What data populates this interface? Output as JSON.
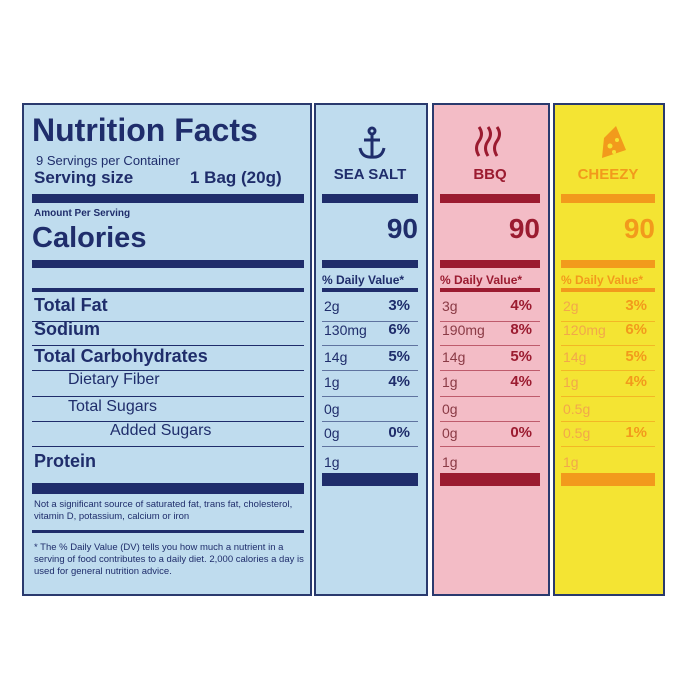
{
  "header": {
    "title": "Nutrition Facts",
    "servings": "9 Servings per Container",
    "serving_size_label": "Serving size",
    "serving_size": "1 Bag (20g)",
    "amount_per_serving": "Amount Per Serving",
    "calories_label": "Calories"
  },
  "nutrients": [
    "Total Fat",
    "Sodium",
    "Total Carbohydrates",
    "Dietary Fiber",
    "Total Sugars",
    "Added Sugars",
    "Protein"
  ],
  "flavors": [
    {
      "name": "SEA SALT",
      "color": "#1f2d6b",
      "amount_color": "#1f2d6b",
      "background": "#bfdcee",
      "calories": 90,
      "dv_header": "% Daily Value*",
      "amounts": [
        "2g",
        "130mg",
        "14g",
        "1g",
        "0g",
        "0g",
        "1g"
      ],
      "dvs": [
        "3%",
        "6%",
        "5%",
        "4%",
        null,
        "0%",
        null
      ]
    },
    {
      "name": "BBQ",
      "color": "#9b1b30",
      "amount_color": "#8a3a45",
      "background": "#f3bcc6",
      "calories": 90,
      "dv_header": "% Daily Value*",
      "amounts": [
        "3g",
        "190mg",
        "14g",
        "1g",
        "0g",
        "0g",
        "1g"
      ],
      "dvs": [
        "4%",
        "8%",
        "5%",
        "4%",
        null,
        "0%",
        null
      ]
    },
    {
      "name": "CHEEZY",
      "color": "#f29a1c",
      "amount_color": "#f2a84a",
      "background": "#f4e433",
      "calories": 90,
      "dv_header": "% Daily Value*",
      "amounts": [
        "2g",
        "120mg",
        "14g",
        "1g",
        "0.5g",
        "0.5g",
        "1g"
      ],
      "dvs": [
        "3%",
        "6%",
        "5%",
        "4%",
        null,
        "1%",
        null
      ]
    }
  ],
  "footnotes": [
    "Not a significant source of saturated fat, trans fat, cholesterol, vitamin D, potassium, calcium or iron",
    "* The % Daily Value (DV) tells you how much a nutrient in a serving of food contributes to a daily diet. 2,000 calories a day is used for general nutrition advice."
  ]
}
